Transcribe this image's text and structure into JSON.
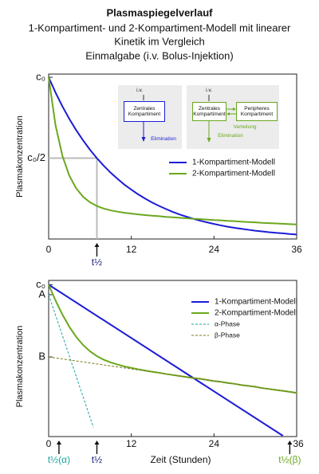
{
  "title": "Plasmaspiegelverlauf",
  "subtitle": [
    "1-Kompartiment- und 2-Kompartiment-Modell mit linearer",
    "Kinetik im Vergleich",
    "Einmalgabe (i.v. Bolus-Injektion)"
  ],
  "chart_data": [
    {
      "type": "line",
      "ylabel": "Plasmakonzentration",
      "x": [
        0,
        1,
        2,
        3,
        4,
        5,
        6,
        7,
        8,
        9,
        10,
        11,
        12,
        13,
        14,
        15,
        16,
        17,
        18,
        19,
        20,
        21,
        22,
        23,
        24,
        25,
        26,
        27,
        28,
        29,
        30,
        31,
        32,
        33,
        34,
        35,
        36
      ],
      "xlim": [
        0,
        36
      ],
      "xticks": [
        0,
        12,
        24,
        36
      ],
      "ylim": [
        0,
        1.02
      ],
      "yticks": [
        {
          "value": 1,
          "label": "c₀"
        },
        {
          "value": 0.5,
          "label": "c₀/2"
        }
      ],
      "legend": "upper right",
      "series": [
        {
          "name": "1-Kompartiment-Modell",
          "color": "#1c1cd6",
          "values": [
            1,
            0.906,
            0.82,
            0.743,
            0.673,
            0.61,
            0.552,
            0.5,
            0.453,
            0.41,
            0.372,
            0.336,
            0.305,
            0.276,
            0.25,
            0.226,
            0.205,
            0.186,
            0.168,
            0.152,
            0.138,
            0.125,
            0.113,
            0.103,
            0.093,
            0.084,
            0.076,
            0.069,
            0.063,
            0.057,
            0.051,
            0.047,
            0.042,
            0.038,
            0.035,
            0.031,
            0.028
          ]
        },
        {
          "name": "2-Kompartiment-Modell",
          "color": "#6aa81e",
          "values": [
            1,
            0.703,
            0.514,
            0.392,
            0.313,
            0.261,
            0.227,
            0.204,
            0.188,
            0.177,
            0.169,
            0.162,
            0.157,
            0.152,
            0.148,
            0.144,
            0.141,
            0.137,
            0.134,
            0.131,
            0.128,
            0.125,
            0.123,
            0.12,
            0.117,
            0.115,
            0.112,
            0.11,
            0.107,
            0.105,
            0.103,
            0.1,
            0.098,
            0.096,
            0.094,
            0.092,
            0.09
          ]
        }
      ],
      "guide": {
        "x": 7,
        "y": 0.5
      },
      "markers": [
        {
          "x": 7,
          "label": "t½",
          "color": "#1a1a80"
        }
      ],
      "diagram": {
        "one": {
          "iv": "i.v.",
          "box": "Zentrales Kompartiment",
          "out": "Elimination"
        },
        "two": {
          "iv": "i.v.",
          "box": "Zentrales Kompartiment",
          "box2": "Peripheres Kompartiment",
          "dist": "Verteilung",
          "out": "Elimination"
        }
      }
    },
    {
      "type": "line",
      "log": true,
      "ylabel": "Plasmakonzentration",
      "xlabel": "Zeit (Stunden)",
      "xlim": [
        0,
        36
      ],
      "xticks": [
        0,
        12,
        24,
        36
      ],
      "ylim": [
        0.034,
        1.1
      ],
      "yticks": [
        {
          "value": 1,
          "label": "c₀"
        },
        {
          "value": 0.8,
          "label": "A"
        },
        {
          "value": 0.2,
          "label": "B"
        }
      ],
      "legend": "upper right",
      "series": [
        {
          "name": "1-Kompartiment-Modell",
          "color": "#1c1cd6",
          "x": [
            0,
            34
          ],
          "values": [
            1,
            0.0346
          ]
        },
        {
          "name": "2-Kompartiment-Modell",
          "color": "#6aa81e",
          "x": [
            0,
            1,
            2,
            3,
            4,
            5,
            6,
            7,
            8,
            9,
            10,
            11,
            12,
            13,
            14,
            15,
            16,
            17,
            18,
            19,
            20,
            21,
            22,
            23,
            24,
            25,
            26,
            27,
            28,
            29,
            30,
            31,
            32,
            33,
            34,
            35,
            36
          ],
          "values": [
            1,
            0.703,
            0.514,
            0.392,
            0.313,
            0.261,
            0.227,
            0.204,
            0.188,
            0.177,
            0.169,
            0.162,
            0.157,
            0.152,
            0.148,
            0.144,
            0.141,
            0.137,
            0.134,
            0.131,
            0.128,
            0.125,
            0.123,
            0.12,
            0.117,
            0.115,
            0.112,
            0.11,
            0.107,
            0.105,
            0.103,
            0.1,
            0.098,
            0.096,
            0.094,
            0.092,
            0.09
          ]
        },
        {
          "name": "α-Phase",
          "color": "#1aa6a0",
          "dash": true,
          "x": [
            0,
            6.5
          ],
          "values": [
            0.8,
            0.0417
          ]
        },
        {
          "name": "β-Phase",
          "color": "#7a7a1a",
          "dash": true,
          "x": [
            0,
            36
          ],
          "values": [
            0.2,
            0.09
          ]
        }
      ],
      "markers": [
        {
          "x": 1.5,
          "label": "t½(α)",
          "color": "#1aa6a0"
        },
        {
          "x": 7,
          "label": "t½",
          "color": "#1a1a80"
        },
        {
          "x": 35,
          "label": "t½(β)",
          "color": "#6aa81e"
        }
      ]
    }
  ]
}
